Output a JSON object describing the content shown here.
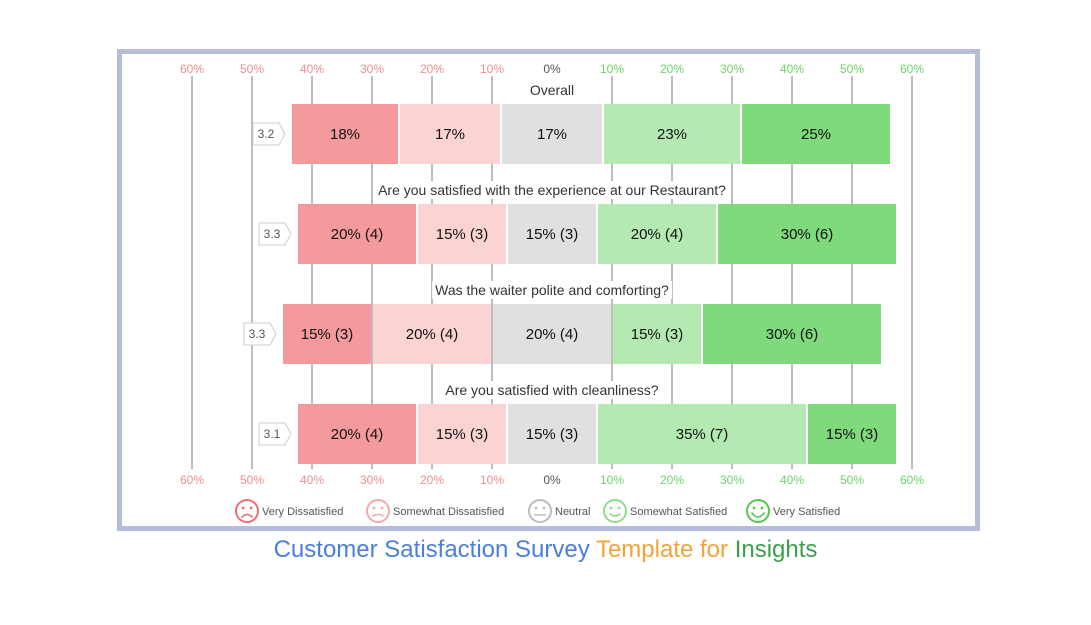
{
  "chart_data": {
    "type": "bar",
    "subtype": "diverging-stacked",
    "axis_ticks": [
      "60%",
      "50%",
      "40%",
      "30%",
      "20%",
      "10%",
      "0%",
      "10%",
      "20%",
      "30%",
      "40%",
      "50%",
      "60%"
    ],
    "xlim": [
      -60,
      60
    ],
    "grid": true,
    "legend_position": "bottom",
    "legend": [
      {
        "label": "Very Dissatisfied",
        "color": "#ef6e72",
        "face": "sad"
      },
      {
        "label": "Somewhat Dissatisfied",
        "color": "#f4a9ab",
        "face": "meh-down"
      },
      {
        "label": "Neutral",
        "color": "#bdbdbd",
        "face": "neutral"
      },
      {
        "label": "Somewhat Satisfied",
        "color": "#8fdc8c",
        "face": "smile"
      },
      {
        "label": "Very Satisfied",
        "color": "#55c64f",
        "face": "happy"
      }
    ],
    "categories": [
      "Very Dissatisfied",
      "Somewhat Dissatisfied",
      "Neutral",
      "Somewhat Satisfied",
      "Very Satisfied"
    ],
    "colors": [
      "#f59a9c",
      "#fbd3d3",
      "#e0e0e0",
      "#b4e9b1",
      "#7fda7b"
    ],
    "questions": [
      {
        "title": "Overall",
        "score": "3.2",
        "values": [
          18,
          17,
          17,
          23,
          25
        ],
        "labels": [
          "18%",
          "17%",
          "17%",
          "23%",
          "25%"
        ]
      },
      {
        "title": "Are you satisfied with the experience at our Restaurant?",
        "score": "3.3",
        "values": [
          20,
          15,
          15,
          20,
          30
        ],
        "labels": [
          "20% (4)",
          "15% (3)",
          "15% (3)",
          "20% (4)",
          "30% (6)"
        ]
      },
      {
        "title": "Was the waiter polite and comforting?",
        "score": "3.3",
        "values": [
          15,
          20,
          20,
          15,
          30
        ],
        "labels": [
          "15% (3)",
          "20% (4)",
          "20% (4)",
          "15% (3)",
          "30% (6)"
        ]
      },
      {
        "title": "Are you satisfied with cleanliness?",
        "score": "3.1",
        "values": [
          20,
          15,
          15,
          35,
          15
        ],
        "labels": [
          "20% (4)",
          "15% (3)",
          "15% (3)",
          "35% (7)",
          "15% (3)"
        ]
      }
    ]
  },
  "caption": {
    "part1": "Customer Satisfaction Survey",
    "part2": "Template for",
    "part3": "Insights",
    "color1": "#4a7fe0",
    "color2": "#f2a33a",
    "color3": "#3aa04a"
  }
}
